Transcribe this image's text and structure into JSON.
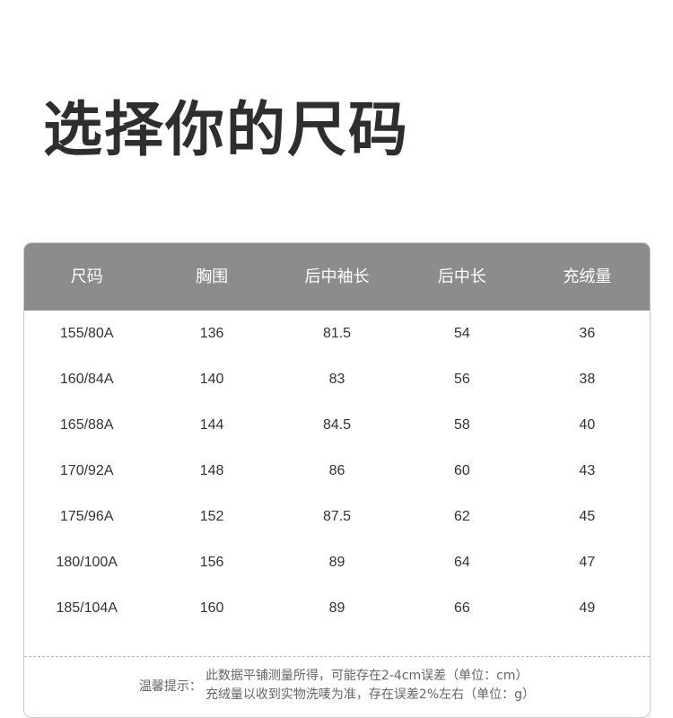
{
  "title": "选择你的尺码",
  "table": {
    "headers": [
      "尺码",
      "胸围",
      "后中袖长",
      "后中长",
      "充绒量"
    ],
    "rows": [
      [
        "155/80A",
        "136",
        "81.5",
        "54",
        "36"
      ],
      [
        "160/84A",
        "140",
        "83",
        "56",
        "38"
      ],
      [
        "165/88A",
        "144",
        "84.5",
        "58",
        "40"
      ],
      [
        "170/92A",
        "148",
        "86",
        "60",
        "43"
      ],
      [
        "175/96A",
        "152",
        "87.5",
        "62",
        "45"
      ],
      [
        "180/100A",
        "156",
        "89",
        "64",
        "47"
      ],
      [
        "185/104A",
        "160",
        "89",
        "66",
        "49"
      ]
    ]
  },
  "note": {
    "label": "温馨提示：",
    "lines": [
      "此数据平铺测量所得，可能存在2-4cm误差（单位：cm）",
      "充绒量以收到实物洗唛为准，存在误差2%左右（单位：g）"
    ]
  },
  "colors": {
    "header_bg": "#8c8c8c",
    "title": "#2e2e2e"
  }
}
